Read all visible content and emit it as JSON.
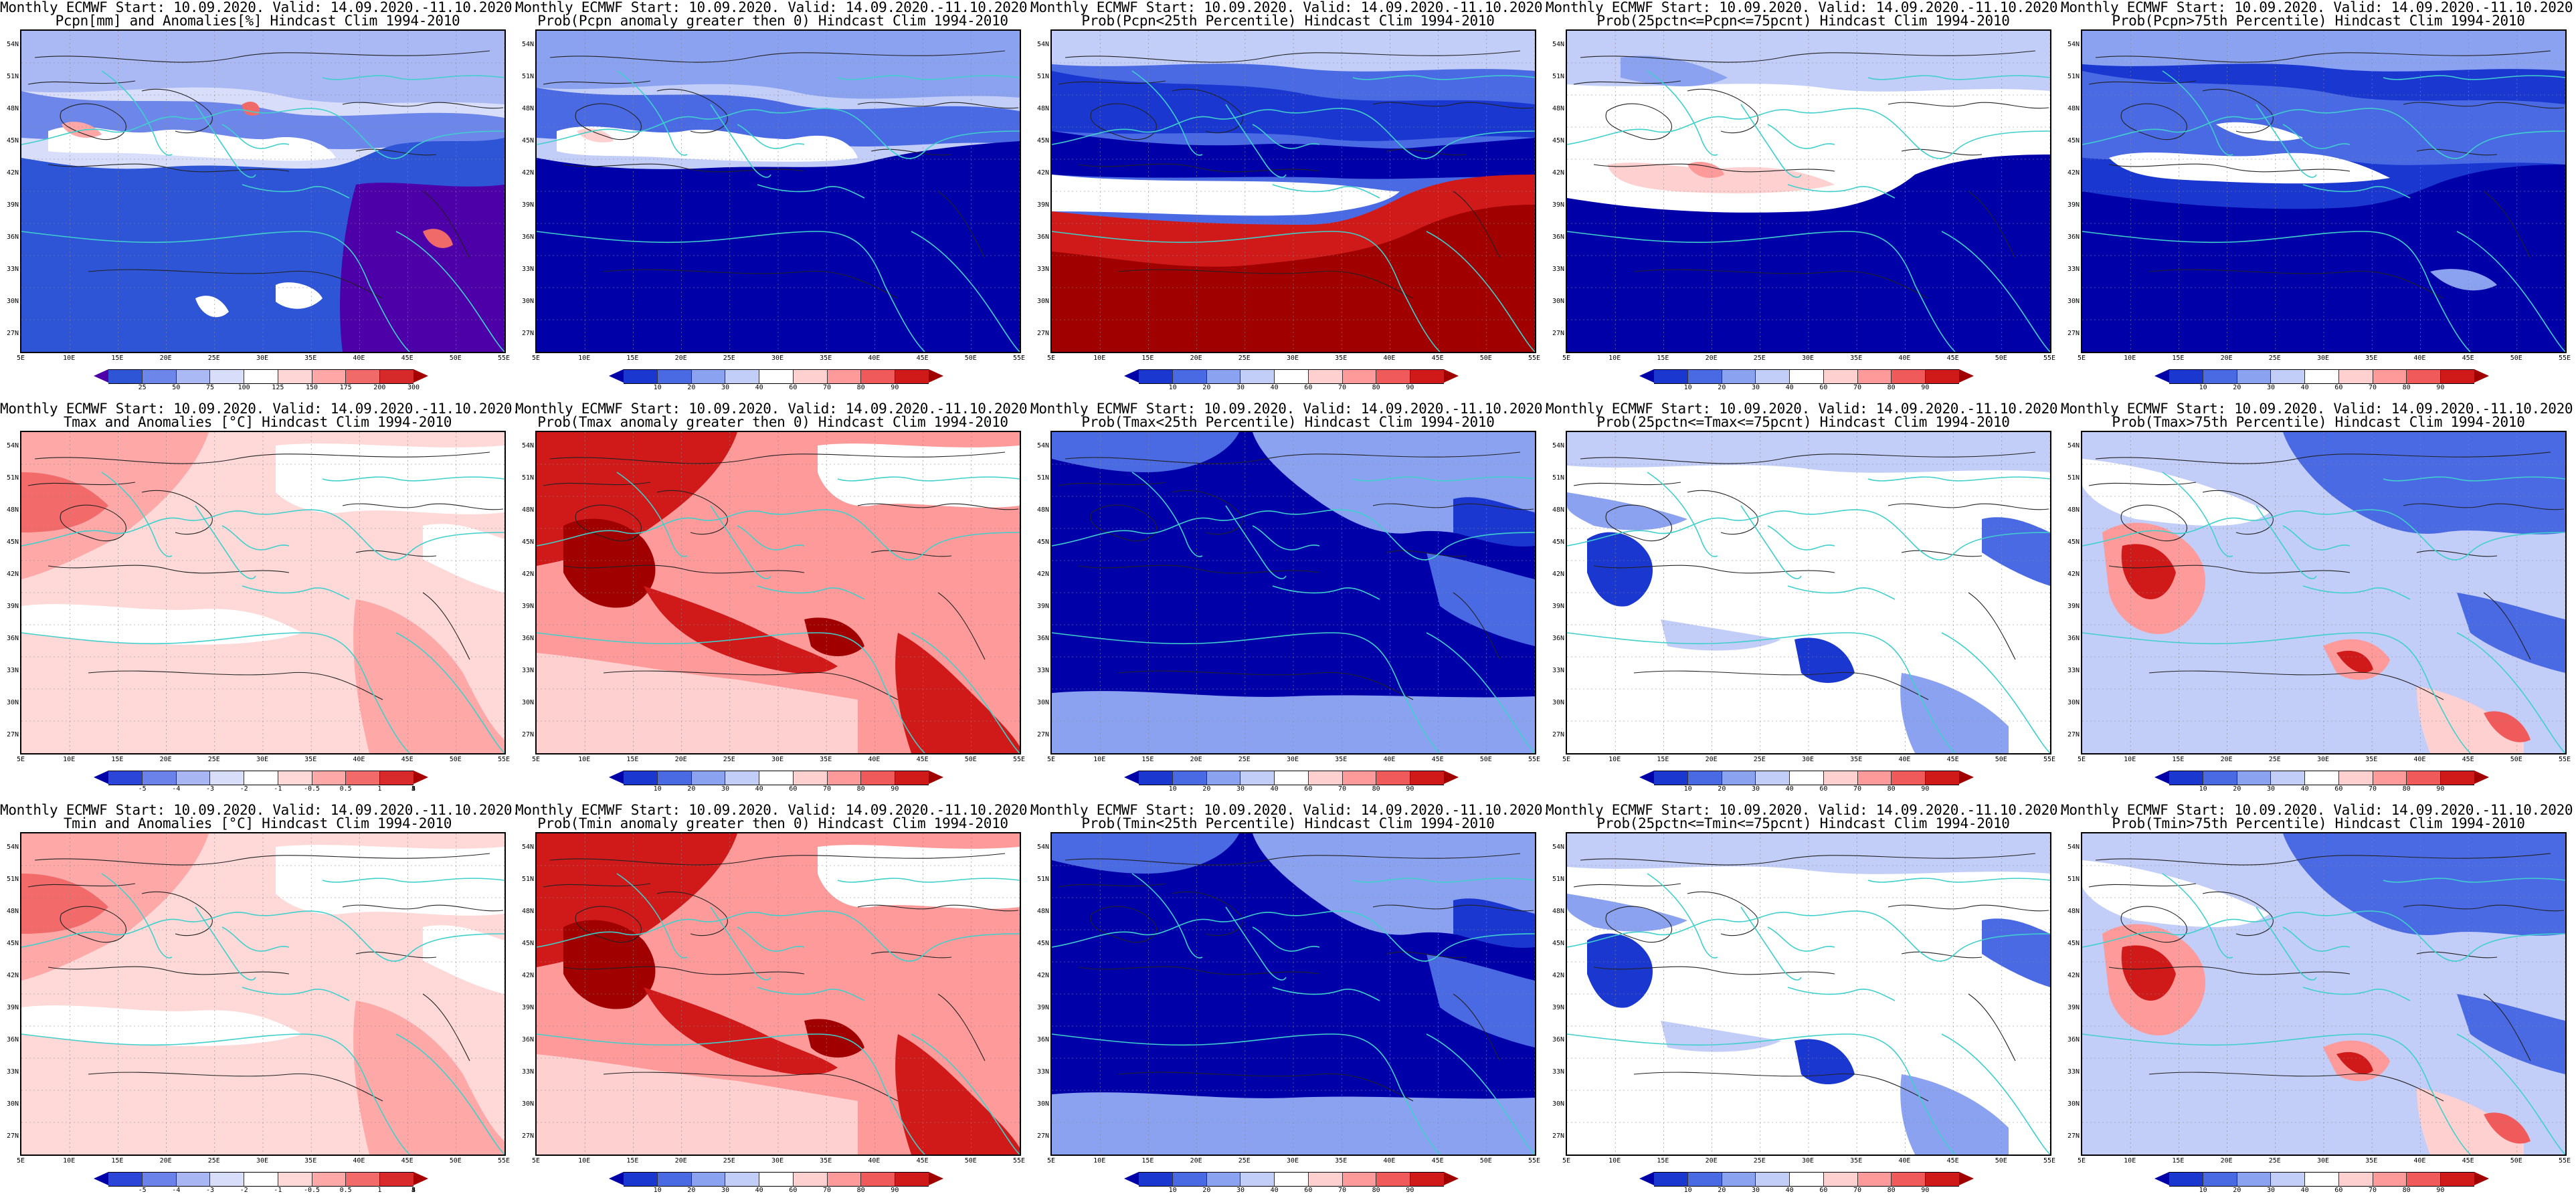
{
  "common": {
    "title_line1": "Monthly ECMWF Start: 10.09.2020. Valid: 14.09.2020.-11.10.2020.",
    "lat_labels": [
      "54N",
      "51N",
      "48N",
      "45N",
      "42N",
      "39N",
      "36N",
      "33N",
      "30N",
      "27N"
    ],
    "lon_labels": [
      "5E",
      "10E",
      "15E",
      "20E",
      "25E",
      "30E",
      "35E",
      "40E",
      "45E",
      "50E",
      "55E"
    ],
    "coastline_color": "#3fd0cc",
    "contour_color": "#222222"
  },
  "scales": {
    "anom_pcpn": {
      "colors": [
        "#4d00a8",
        "#2d55d6",
        "#6d86ea",
        "#aab8f4",
        "#d8defa",
        "#ffffff",
        "#ffd6d6",
        "#ffa6a6",
        "#f06a6a",
        "#d62a2a",
        "#a60000"
      ],
      "ticks": [
        "25",
        "50",
        "75",
        "100",
        "125",
        "150",
        "175",
        "200",
        "300"
      ]
    },
    "anom_temp": {
      "colors": [
        "#0000a8",
        "#2a45d8",
        "#6a82ea",
        "#a8b6f4",
        "#d8defa",
        "#ffffff",
        "#ffd8d8",
        "#ffa8a8",
        "#f26a6a",
        "#d82a2a",
        "#a80000"
      ],
      "ticks": [
        "-5",
        "-4",
        "-3",
        "-2",
        "-1",
        "-0.5",
        "0.5",
        "1",
        "2",
        "3",
        "4",
        "5"
      ]
    },
    "prob": {
      "colors": [
        "#0000a8",
        "#1a38d0",
        "#4a6ae4",
        "#8aa2f0",
        "#c2cdf8",
        "#ffffff",
        "#ffd0d0",
        "#ff9a9a",
        "#f05a5a",
        "#d01a1a",
        "#a00000"
      ],
      "ticks": [
        "10",
        "20",
        "30",
        "40",
        "60",
        "70",
        "80",
        "90"
      ]
    }
  },
  "panels": [
    {
      "title2": "Pcpn[mm] and Anomalies[%] Hindcast Clim 1994-2010",
      "scale": "anom_pcpn",
      "pattern": "pcpn_anom"
    },
    {
      "title2": "Prob(Pcpn anomaly greater then 0) Hindcast Clim 1994-2010",
      "scale": "prob",
      "pattern": "pcpn_pos"
    },
    {
      "title2": "Prob(Pcpn<25th Percentile) Hindcast Clim 1994-2010",
      "scale": "prob",
      "pattern": "pcpn_low"
    },
    {
      "title2": "Prob(25pctn<=Pcpn<=75pcnt) Hindcast Clim 1994-2010",
      "scale": "prob",
      "pattern": "pcpn_mid"
    },
    {
      "title2": "Prob(Pcpn>75th Percentile) Hindcast Clim 1994-2010",
      "scale": "prob",
      "pattern": "pcpn_high"
    },
    {
      "title2": "Tmax and Anomalies [°C] Hindcast Clim 1994-2010",
      "scale": "anom_temp",
      "pattern": "t_anom"
    },
    {
      "title2": "Prob(Tmax anomaly greater then 0) Hindcast Clim 1994-2010",
      "scale": "prob",
      "pattern": "t_pos"
    },
    {
      "title2": "Prob(Tmax<25th Percentile) Hindcast Clim 1994-2010",
      "scale": "prob",
      "pattern": "t_low"
    },
    {
      "title2": "Prob(25pctn<=Tmax<=75pcnt) Hindcast Clim 1994-2010",
      "scale": "prob",
      "pattern": "t_mid"
    },
    {
      "title2": "Prob(Tmax>75th Percentile) Hindcast Clim 1994-2010",
      "scale": "prob",
      "pattern": "t_high"
    },
    {
      "title2": "Tmin and Anomalies [°C] Hindcast Clim 1994-2010",
      "scale": "anom_temp",
      "pattern": "t_anom"
    },
    {
      "title2": "Prob(Tmin anomaly greater then 0) Hindcast Clim 1994-2010",
      "scale": "prob",
      "pattern": "t_pos"
    },
    {
      "title2": "Prob(Tmin<25th Percentile) Hindcast Clim 1994-2010",
      "scale": "prob",
      "pattern": "t_low"
    },
    {
      "title2": "Prob(25pctn<=Tmin<=75pcnt) Hindcast Clim 1994-2010",
      "scale": "prob",
      "pattern": "t_mid"
    },
    {
      "title2": "Prob(Tmin>75th Percentile) Hindcast Clim 1994-2010",
      "scale": "prob",
      "pattern": "t_high"
    }
  ]
}
